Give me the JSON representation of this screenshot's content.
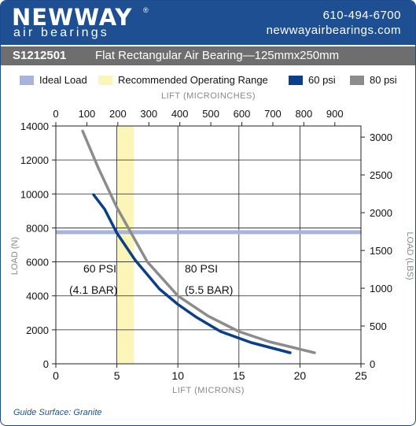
{
  "header": {
    "brand_main": "NEWWAY",
    "brand_reg": "®",
    "brand_sub": "air bearings",
    "phone": "610-494-6700",
    "website": "newwayairbearings.com",
    "colors": {
      "header_bg": "#1f4f93",
      "title_bg": "#6e6e6e"
    }
  },
  "title": {
    "part_number": "S1212501",
    "description": "Flat Rectangular Air Bearing—125mmx250mm"
  },
  "legend": [
    {
      "label": "Ideal Load",
      "color": "#a8b4dc"
    },
    {
      "label": "Recommended Operating Range",
      "color": "#fbf5b8"
    },
    {
      "label": "60 psi",
      "color": "#0b3f8a"
    },
    {
      "label": "80 psi",
      "color": "#8c8c8c"
    }
  ],
  "footer": {
    "guide_surface": "Guide Surface: Granite"
  },
  "chart_data": {
    "type": "line",
    "xlabel": "LIFT (MICRONS)",
    "x2label": "LIFT (MICROINCHES)",
    "ylabel": "LOAD (N)",
    "y2label": "LOAD (LBS)",
    "xlim": [
      0,
      25
    ],
    "ylim": [
      0,
      14000
    ],
    "x2lim": [
      0,
      984.25
    ],
    "y2lim": [
      0,
      3147.4
    ],
    "x_ticks": [
      "0",
      "5",
      "10",
      "15",
      "20",
      "25"
    ],
    "y_ticks": [
      "0",
      "2000",
      "4000",
      "6000",
      "8000",
      "10000",
      "12000",
      "14000"
    ],
    "x2_ticks": [
      "0",
      "100",
      "200",
      "300",
      "400",
      "500",
      "600",
      "700",
      "800",
      "900"
    ],
    "y2_ticks": [
      "0",
      "500",
      "1000",
      "1500",
      "2000",
      "2500",
      "3000"
    ],
    "grid": true,
    "ideal_load": 7750,
    "operating_range": [
      5,
      6.4
    ],
    "series": [
      {
        "name": "60 psi",
        "color": "#0b3f8a",
        "x": [
          3.1,
          4.0,
          5.0,
          6.5,
          8.5,
          10.0,
          11.5,
          13.5,
          16.0,
          19.2
        ],
        "y": [
          9950,
          9100,
          7700,
          6100,
          4400,
          3500,
          2750,
          1900,
          1250,
          650
        ]
      },
      {
        "name": "80 psi",
        "color": "#8c8c8c",
        "x": [
          2.2,
          3.5,
          5.0,
          7.5,
          10.0,
          12.5,
          15.0,
          17.5,
          21.2
        ],
        "y": [
          13700,
          11500,
          9200,
          6000,
          4000,
          2800,
          1900,
          1300,
          650
        ]
      }
    ],
    "annotations": [
      {
        "line1": "60 PSI",
        "line2": "(4.1 BAR)"
      },
      {
        "line1": "80 PSI",
        "line2": "(5.5 BAR)"
      }
    ]
  }
}
